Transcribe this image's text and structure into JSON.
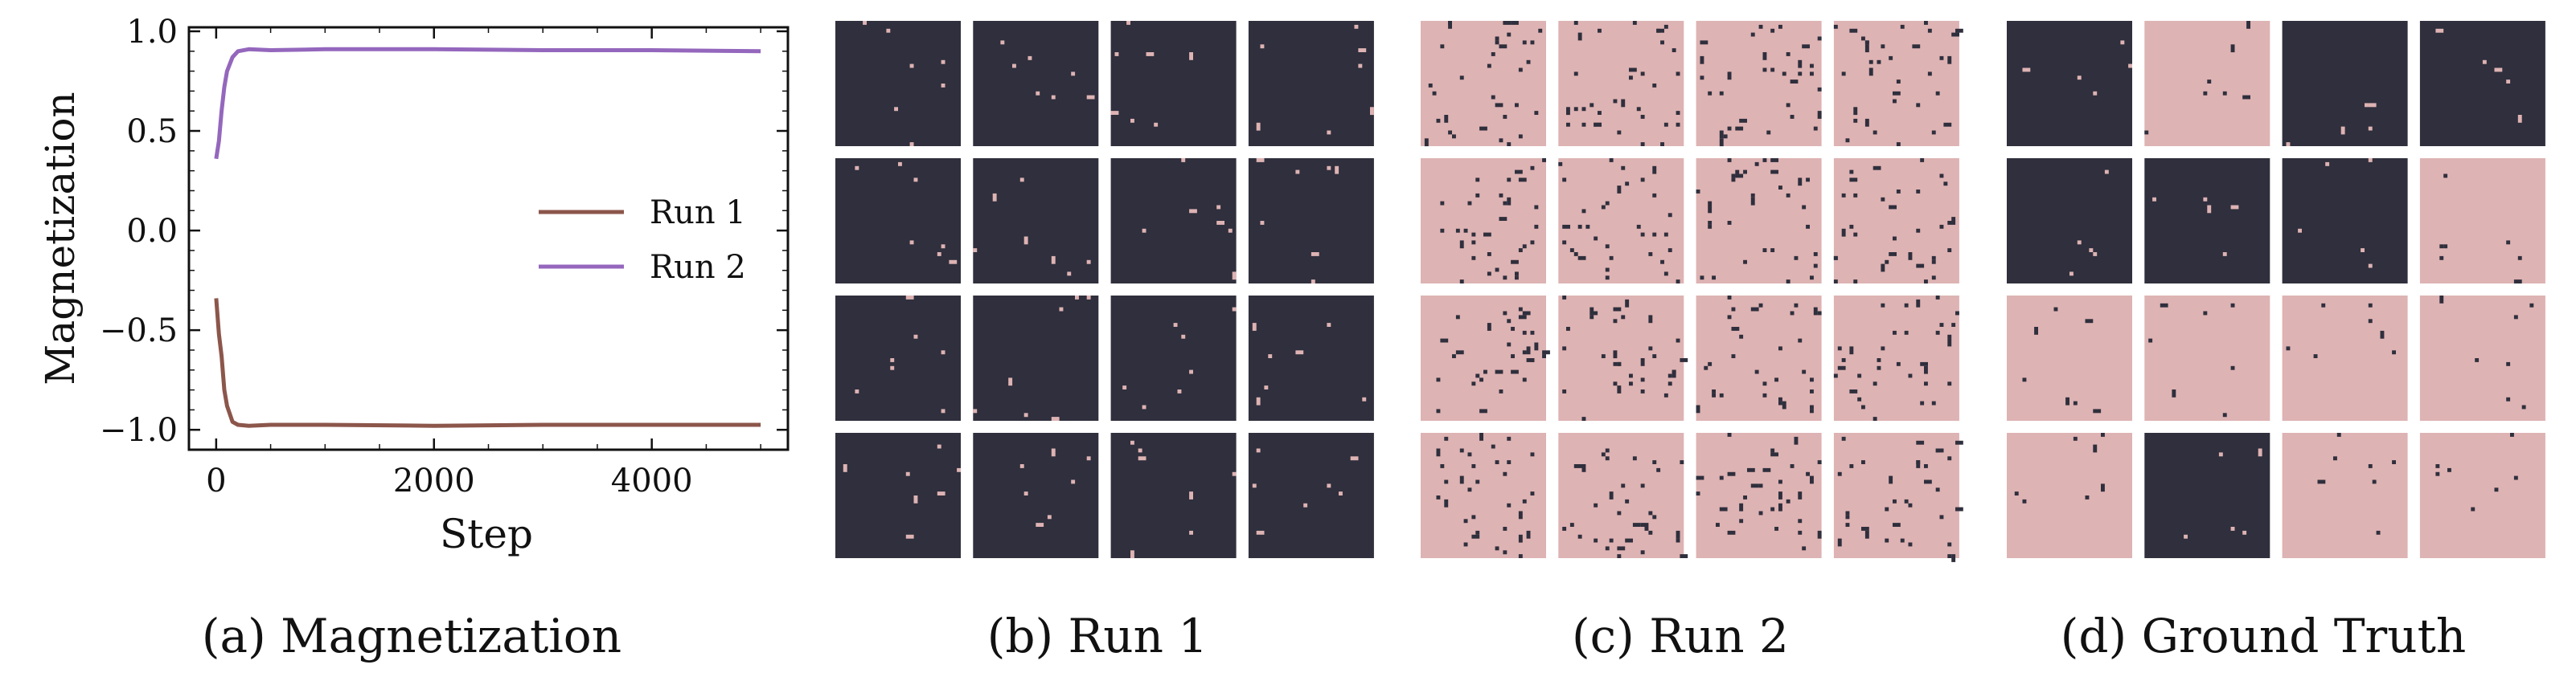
{
  "colors": {
    "run1": "#8c564b",
    "run2": "#9467bd",
    "dark": "#2f2f3d",
    "light": "#deb3b3"
  },
  "chart_data": {
    "type": "line",
    "xlabel": "Step",
    "ylabel": "Magnetization",
    "xlim": [
      -250,
      5250
    ],
    "ylim": [
      -1.1,
      1.02
    ],
    "xticks": [
      0,
      2000,
      4000
    ],
    "xtick_labels": [
      "0",
      "2000",
      "4000"
    ],
    "yticks": [
      1.0,
      0.5,
      0.0,
      -0.5,
      -1.0
    ],
    "ytick_labels": [
      "1.0",
      "0.5",
      "0.0",
      "−0.5",
      "−1.0"
    ],
    "legend_position": "right",
    "series": [
      {
        "name": "Run 1",
        "color": "#8c564b",
        "x": [
          0,
          25,
          50,
          75,
          100,
          150,
          200,
          300,
          500,
          1000,
          2000,
          3000,
          4000,
          5000
        ],
        "y": [
          -0.34,
          -0.52,
          -0.63,
          -0.8,
          -0.88,
          -0.96,
          -0.975,
          -0.98,
          -0.975,
          -0.975,
          -0.98,
          -0.975,
          -0.975,
          -0.975
        ]
      },
      {
        "name": "Run 2",
        "color": "#9467bd",
        "x": [
          0,
          25,
          50,
          75,
          100,
          150,
          200,
          300,
          500,
          1000,
          2000,
          3000,
          4000,
          5000
        ],
        "y": [
          0.36,
          0.45,
          0.6,
          0.72,
          0.8,
          0.87,
          0.9,
          0.91,
          0.905,
          0.91,
          0.91,
          0.905,
          0.905,
          0.9
        ]
      }
    ]
  },
  "captions": {
    "a": "(a) Magnetization",
    "b": "(b) Run 1",
    "c": "(c) Run 2",
    "d": "(d) Ground Truth"
  },
  "panels": {
    "b": {
      "grid": [
        [
          "dark",
          "dark",
          "dark",
          "dark"
        ],
        [
          "dark",
          "dark",
          "dark",
          "dark"
        ],
        [
          "dark",
          "dark",
          "dark",
          "dark"
        ],
        [
          "dark",
          "dark",
          "dark",
          "dark"
        ]
      ]
    },
    "c": {
      "grid": [
        [
          "light",
          "light",
          "light",
          "light"
        ],
        [
          "light",
          "light",
          "light",
          "light"
        ],
        [
          "light",
          "light",
          "light",
          "light"
        ],
        [
          "light",
          "light",
          "light",
          "light"
        ]
      ]
    },
    "d": {
      "grid": [
        [
          "dark",
          "light",
          "dark",
          "dark"
        ],
        [
          "dark",
          "dark",
          "dark",
          "light"
        ],
        [
          "light",
          "light",
          "light",
          "light"
        ],
        [
          "light",
          "dark",
          "light",
          "light"
        ]
      ]
    }
  }
}
